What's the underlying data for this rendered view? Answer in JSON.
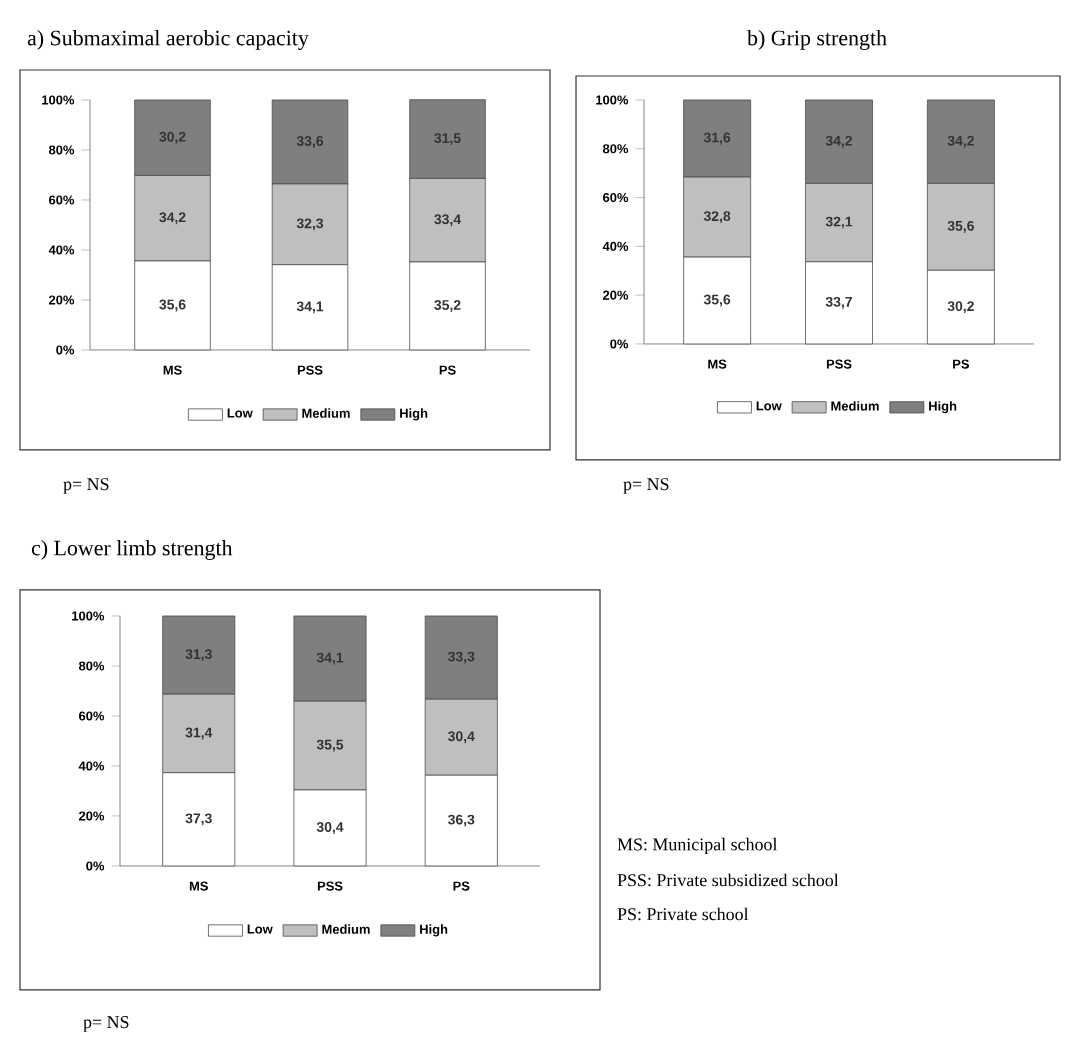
{
  "chart_data": [
    {
      "type": "bar",
      "title": "a)  Submaximal aerobic capacity",
      "stacked": true,
      "legend": "bottom",
      "categories": [
        "MS",
        "PSS",
        "PS"
      ],
      "ylim": [
        0,
        100
      ],
      "yticks": [
        {
          "value": 0,
          "label": "0%"
        },
        {
          "value": 20,
          "label": "20%"
        },
        {
          "value": 40,
          "label": "40%"
        },
        {
          "value": 60,
          "label": "60%"
        },
        {
          "value": 80,
          "label": "80%"
        },
        {
          "value": 100,
          "label": "100%"
        }
      ],
      "series": [
        {
          "name": "Low",
          "color": "#ffffff",
          "values": [
            35.6,
            34.1,
            35.2
          ],
          "value_labels": [
            "35,6",
            "34,1",
            "35,2"
          ]
        },
        {
          "name": "Medium",
          "color": "#bfbfbf",
          "values": [
            34.2,
            32.3,
            33.4
          ],
          "value_labels": [
            "34,2",
            "32,3",
            "33,4"
          ]
        },
        {
          "name": "High",
          "color": "#7f7f7f",
          "values": [
            30.2,
            33.6,
            31.5
          ],
          "value_labels": [
            "30,2",
            "33,6",
            "31,5"
          ]
        }
      ],
      "annotations": [
        "p= NS"
      ]
    },
    {
      "type": "bar",
      "title": "b) Grip strength",
      "stacked": true,
      "legend": "bottom",
      "categories": [
        "MS",
        "PSS",
        "PS"
      ],
      "ylim": [
        0,
        100
      ],
      "yticks": [
        {
          "value": 0,
          "label": "0%"
        },
        {
          "value": 20,
          "label": "20%"
        },
        {
          "value": 40,
          "label": "40%"
        },
        {
          "value": 60,
          "label": "60%"
        },
        {
          "value": 80,
          "label": "80%"
        },
        {
          "value": 100,
          "label": "100%"
        }
      ],
      "series": [
        {
          "name": "Low",
          "color": "#ffffff",
          "values": [
            35.6,
            33.7,
            30.2
          ],
          "value_labels": [
            "35,6",
            "33,7",
            "30,2"
          ]
        },
        {
          "name": "Medium",
          "color": "#bfbfbf",
          "values": [
            32.8,
            32.1,
            35.6
          ],
          "value_labels": [
            "32,8",
            "32,1",
            "35,6"
          ]
        },
        {
          "name": "High",
          "color": "#7f7f7f",
          "values": [
            31.6,
            34.2,
            34.2
          ],
          "value_labels": [
            "31,6",
            "34,2",
            "34,2"
          ]
        }
      ],
      "annotations": [
        "p= NS"
      ]
    },
    {
      "type": "bar",
      "title": "c)  Lower limb strength",
      "stacked": true,
      "legend": "bottom",
      "categories": [
        "MS",
        "PSS",
        "PS"
      ],
      "ylim": [
        0,
        100
      ],
      "yticks": [
        {
          "value": 0,
          "label": "0%"
        },
        {
          "value": 20,
          "label": "20%"
        },
        {
          "value": 40,
          "label": "40%"
        },
        {
          "value": 60,
          "label": "60%"
        },
        {
          "value": 80,
          "label": "80%"
        },
        {
          "value": 100,
          "label": "100%"
        }
      ],
      "series": [
        {
          "name": "Low",
          "color": "#ffffff",
          "values": [
            37.3,
            30.4,
            36.3
          ],
          "value_labels": [
            "37,3",
            "30,4",
            "36,3"
          ]
        },
        {
          "name": "Medium",
          "color": "#bfbfbf",
          "values": [
            31.4,
            35.5,
            30.4
          ],
          "value_labels": [
            "31,4",
            "35,5",
            "30,4"
          ]
        },
        {
          "name": "High",
          "color": "#7f7f7f",
          "values": [
            31.3,
            34.1,
            33.3
          ],
          "value_labels": [
            "31,3",
            "34,1",
            "33,3"
          ]
        }
      ],
      "annotations": [
        "p= NS",
        "MS: Municipal school",
        "PSS: Private subsidized school",
        "PS: Private school"
      ]
    }
  ]
}
